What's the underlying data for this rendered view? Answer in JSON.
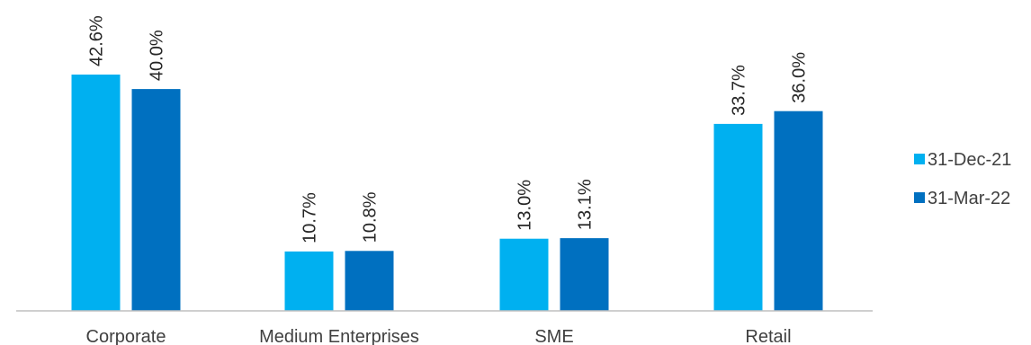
{
  "chart_data": {
    "type": "bar",
    "categories": [
      "Corporate",
      "Medium Enterprises",
      "SME",
      "Retail"
    ],
    "series": [
      {
        "name": "31-Dec-21",
        "values": [
          42.6,
          10.7,
          13.0,
          33.7
        ],
        "labels": [
          "42.6%",
          "10.7%",
          "13.0%",
          "33.7%"
        ],
        "color": "#00B0F0"
      },
      {
        "name": "31-Mar-22",
        "values": [
          40.0,
          10.8,
          13.1,
          36.0
        ],
        "labels": [
          "40.0%",
          "10.8%",
          "13.1%",
          "36.0%"
        ],
        "color": "#0070C0"
      }
    ],
    "title": "",
    "xlabel": "",
    "ylabel": "",
    "ylim": [
      0,
      45
    ],
    "grid": false,
    "legend": "right"
  }
}
